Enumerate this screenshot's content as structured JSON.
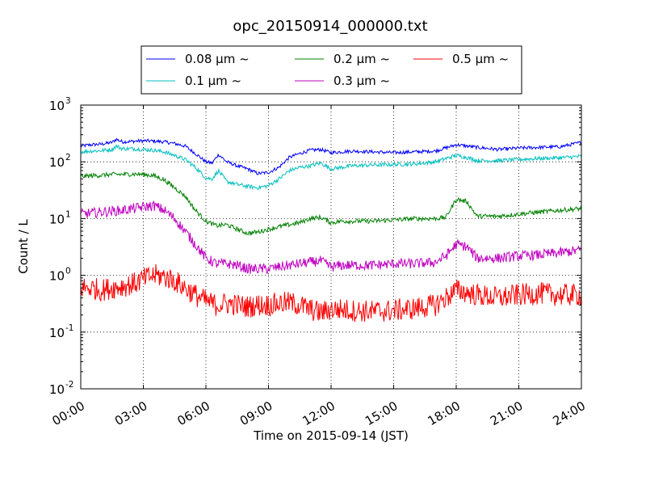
{
  "chart_data": {
    "type": "line",
    "title": "opc_20150914_000000.txt",
    "xlabel": "Time on 2015-09-14 (JST)",
    "ylabel": "Count / L",
    "x_unit": "hours",
    "xlim": [
      0,
      24
    ],
    "ylim": [
      0.01,
      1000
    ],
    "yscale": "log",
    "grid": true,
    "legend_position": "top-center, above plot",
    "x_ticks": [
      {
        "value": 0,
        "label": "00:00"
      },
      {
        "value": 3,
        "label": "03:00"
      },
      {
        "value": 6,
        "label": "06:00"
      },
      {
        "value": 9,
        "label": "09:00"
      },
      {
        "value": 12,
        "label": "12:00"
      },
      {
        "value": 15,
        "label": "15:00"
      },
      {
        "value": 18,
        "label": "18:00"
      },
      {
        "value": 21,
        "label": "21:00"
      },
      {
        "value": 24,
        "label": "24:00"
      }
    ],
    "y_ticks": [
      {
        "value": 0.01,
        "base": "10",
        "exp": "-2"
      },
      {
        "value": 0.1,
        "base": "10",
        "exp": "-1"
      },
      {
        "value": 1,
        "base": "10",
        "exp": "0"
      },
      {
        "value": 10,
        "base": "10",
        "exp": "1"
      },
      {
        "value": 100,
        "base": "10",
        "exp": "2"
      },
      {
        "value": 1000,
        "base": "10",
        "exp": "3"
      }
    ],
    "series": [
      {
        "name": "0.08 μm ~",
        "color": "#0000ff",
        "x": [
          0,
          0.5,
          1,
          1.5,
          1.7,
          2,
          2.5,
          3,
          3.5,
          4,
          4.5,
          5,
          5.5,
          6,
          6.3,
          6.6,
          7,
          7.5,
          8,
          8.5,
          9,
          9.5,
          10,
          10.5,
          11,
          11.5,
          12,
          12.5,
          13,
          14,
          15,
          16,
          17,
          18,
          18.5,
          19,
          20,
          21,
          22,
          23,
          24
        ],
        "y": [
          190,
          200,
          205,
          220,
          250,
          225,
          230,
          235,
          232,
          225,
          210,
          190,
          140,
          100,
          95,
          135,
          100,
          85,
          75,
          62,
          65,
          80,
          120,
          140,
          160,
          165,
          145,
          150,
          155,
          150,
          145,
          150,
          155,
          200,
          190,
          180,
          165,
          175,
          180,
          185,
          220
        ]
      },
      {
        "name": "0.1 μm ~",
        "color": "#00bfbf",
        "x": [
          0,
          0.5,
          1,
          1.5,
          1.7,
          2,
          2.5,
          3,
          3.5,
          4,
          4.5,
          5,
          5.5,
          6,
          6.3,
          6.6,
          7,
          7.5,
          8,
          8.5,
          9,
          9.5,
          10,
          10.5,
          11,
          11.5,
          12,
          12.5,
          13,
          14,
          15,
          16,
          17,
          18,
          18.5,
          19,
          20,
          21,
          22,
          23,
          24
        ],
        "y": [
          150,
          155,
          158,
          165,
          190,
          170,
          170,
          165,
          160,
          150,
          130,
          110,
          80,
          52,
          50,
          70,
          45,
          40,
          37,
          35,
          38,
          50,
          70,
          80,
          85,
          95,
          75,
          80,
          85,
          88,
          90,
          92,
          100,
          130,
          120,
          105,
          105,
          110,
          115,
          118,
          125
        ]
      },
      {
        "name": "0.2 μm ~",
        "color": "#008000",
        "x": [
          0,
          0.5,
          1,
          1.5,
          2,
          2.5,
          3,
          3.5,
          4,
          4.5,
          5,
          5.5,
          6,
          6.5,
          7,
          7.5,
          8,
          8.5,
          9,
          9.5,
          10,
          10.5,
          11,
          11.5,
          12,
          12.5,
          13,
          14,
          15,
          16,
          17,
          17.5,
          18,
          18.5,
          19,
          20,
          21,
          22,
          23,
          24
        ],
        "y": [
          55,
          57,
          58,
          60,
          60,
          61,
          60,
          57,
          48,
          35,
          25,
          14,
          9,
          7.5,
          7.8,
          6.5,
          5.5,
          5.8,
          6.5,
          7.2,
          7.8,
          8.5,
          10,
          10.5,
          8.5,
          9,
          9,
          9,
          9.5,
          10,
          10,
          10.5,
          22,
          20,
          11,
          11,
          12,
          13,
          14,
          15
        ]
      },
      {
        "name": "0.3 μm ~",
        "color": "#bf00bf",
        "x": [
          0,
          0.5,
          1,
          1.5,
          2,
          2.5,
          3,
          3.5,
          4,
          4.5,
          5,
          5.5,
          6,
          6.5,
          7,
          7.5,
          8,
          8.5,
          9,
          9.5,
          10,
          10.5,
          11,
          11.5,
          12,
          12.5,
          13,
          14,
          15,
          16,
          17,
          17.5,
          18,
          18.5,
          19,
          20,
          21,
          22,
          23,
          24
        ],
        "y": [
          12,
          12.5,
          13,
          13.5,
          14,
          15,
          16,
          17,
          14,
          10,
          6,
          3.5,
          2,
          1.6,
          1.6,
          1.5,
          1.3,
          1.3,
          1.3,
          1.4,
          1.5,
          1.6,
          1.7,
          1.8,
          1.4,
          1.5,
          1.5,
          1.5,
          1.6,
          1.6,
          1.7,
          2.2,
          3.5,
          3.2,
          2,
          2,
          2.2,
          2.3,
          2.5,
          2.8
        ]
      },
      {
        "name": "0.5 μm ~",
        "color": "#ff0000",
        "x": [
          0,
          0.5,
          1,
          1.5,
          2,
          2.5,
          3,
          3.5,
          4,
          4.5,
          5,
          5.5,
          6,
          6.5,
          7,
          7.5,
          8,
          8.5,
          9,
          9.5,
          10,
          10.5,
          11,
          11.5,
          12,
          12.5,
          13,
          14,
          15,
          16,
          17,
          17.5,
          18,
          18.5,
          19,
          20,
          21,
          22,
          23,
          24
        ],
        "y": [
          0.6,
          0.6,
          0.55,
          0.6,
          0.65,
          0.7,
          0.85,
          1,
          0.95,
          0.8,
          0.6,
          0.45,
          0.35,
          0.3,
          0.32,
          0.3,
          0.28,
          0.3,
          0.3,
          0.32,
          0.33,
          0.3,
          0.25,
          0.22,
          0.25,
          0.25,
          0.24,
          0.23,
          0.24,
          0.26,
          0.3,
          0.4,
          0.55,
          0.5,
          0.45,
          0.4,
          0.45,
          0.48,
          0.45,
          0.45
        ]
      }
    ]
  }
}
